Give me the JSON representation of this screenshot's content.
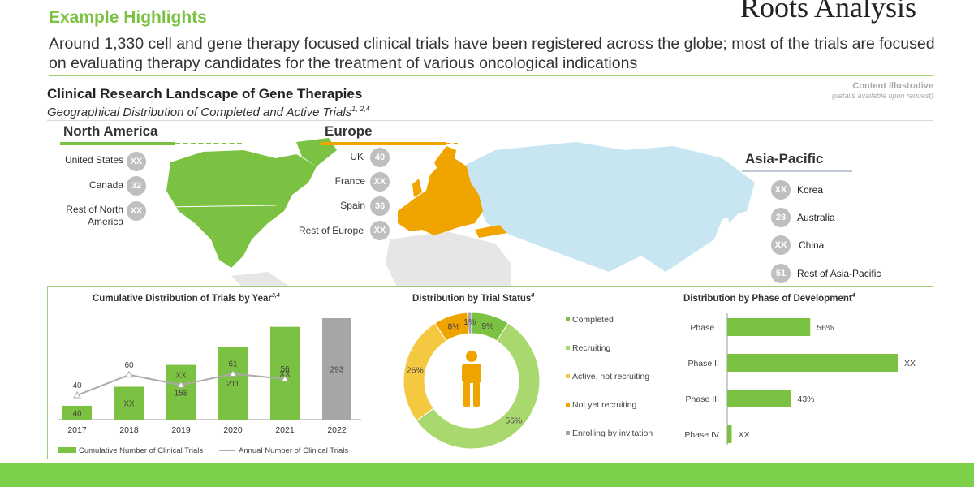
{
  "header": {
    "highlights": "Example Highlights",
    "brand": "Roots Analysis",
    "subtitle": "Around 1,330 cell and gene therapy focused clinical trials have been registered across the globe; most of the trials are focused on evaluating therapy candidates for the treatment of various oncological indications"
  },
  "landscape": {
    "title": "Clinical  Research Landscape of Gene Therapies",
    "subtitle": "Geographical Distribution of Completed and Active Trials",
    "subtitle_refs": "1, 2,4",
    "content_illustrative": "Content Illustrative",
    "details": "(details available upon request)"
  },
  "regions": {
    "north_america": {
      "title": "North America",
      "items": [
        {
          "label": "United States",
          "value": "XX"
        },
        {
          "label": "Canada",
          "value": "32"
        },
        {
          "label": "Rest of North America",
          "value": "XX"
        }
      ]
    },
    "europe": {
      "title": "Europe",
      "items": [
        {
          "label": "UK",
          "value": "49"
        },
        {
          "label": "France",
          "value": "XX"
        },
        {
          "label": "Spain",
          "value": "36"
        },
        {
          "label": "Rest of Europe",
          "value": "XX"
        }
      ]
    },
    "asia_pacific": {
      "title": "Asia-Pacific",
      "items": [
        {
          "label": "Korea",
          "value": "XX"
        },
        {
          "label": "Australia",
          "value": "28"
        },
        {
          "label": "China",
          "value": "XX"
        },
        {
          "label": "Rest of Asia-Pacific",
          "value": "51"
        }
      ]
    }
  },
  "colors": {
    "green": "#7cc242",
    "light_green": "#a9d96e",
    "yellow": "#f5c842",
    "orange": "#f0a400",
    "gray": "#a6a6a6",
    "map_blue": "#c7e6f2",
    "map_gray": "#e6e6e6"
  },
  "chart_data": [
    {
      "type": "bar",
      "title": "Cumulative Distribution  of Trials by Year",
      "title_refs": "3,4",
      "categories": [
        "2017",
        "2018",
        "2019",
        "2020",
        "2021",
        "2022"
      ],
      "series": [
        {
          "name": "Cumulative Number of Clinical Trials",
          "values": [
            40,
            95,
            158,
            211,
            268,
            293
          ],
          "labels": [
            "40",
            "XX",
            "158",
            "211",
            "XX",
            "293"
          ]
        },
        {
          "name": "Annual Number of Clinical Trials",
          "type": "line",
          "values": [
            40,
            60,
            50,
            61,
            56,
            null
          ],
          "labels": [
            "40",
            "60",
            "XX",
            "61",
            "56",
            ""
          ]
        }
      ]
    },
    {
      "type": "pie",
      "title": "Distribution  by Trial Status",
      "title_refs": "4",
      "slices": [
        {
          "label": "Completed",
          "value": 9,
          "display": "9%"
        },
        {
          "label": "Recruiting",
          "value": 56,
          "display": "56%"
        },
        {
          "label": "Active, not recruiting",
          "value": 26,
          "display": "26%"
        },
        {
          "label": "Not yet recruiting",
          "value": 8,
          "display": "8%"
        },
        {
          "label": "Enrolling by invitation",
          "value": 1,
          "display": "1%"
        }
      ]
    },
    {
      "type": "bar",
      "orientation": "horizontal",
      "title": "Distribution  by Phase of Development",
      "title_refs": "4",
      "categories": [
        "Phase I",
        "Phase II",
        "Phase III",
        "Phase IV"
      ],
      "values": [
        56,
        115,
        43,
        3
      ],
      "labels": [
        "56%",
        "XX",
        "43%",
        "XX"
      ]
    }
  ]
}
